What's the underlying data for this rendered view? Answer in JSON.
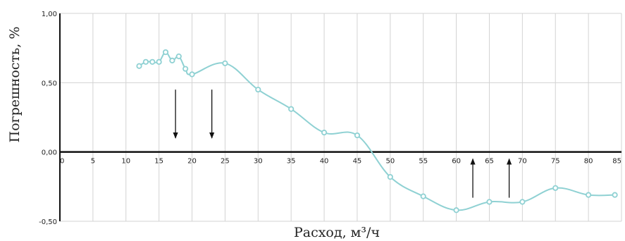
{
  "chart_data": {
    "type": "line",
    "title": "",
    "xlabel": "Расход, м³/ч",
    "ylabel": "Погрешность, %",
    "xlim": [
      0,
      85
    ],
    "ylim": [
      -0.5,
      1.0
    ],
    "grid": true,
    "legend": "none",
    "x_ticks": [
      "0",
      "5",
      "10",
      "15",
      "20",
      "25",
      "30",
      "35",
      "40",
      "45",
      "50",
      "55",
      "60",
      "65",
      "70",
      "75",
      "80",
      "85"
    ],
    "y_ticks": [
      "1,00",
      "0,50",
      "0,00",
      "-0,50"
    ],
    "series": [
      {
        "color": "#8fd1d3",
        "points": [
          [
            12,
            0.62
          ],
          [
            13,
            0.65
          ],
          [
            14,
            0.65
          ],
          [
            15,
            0.65
          ],
          [
            16,
            0.72
          ],
          [
            17,
            0.66
          ],
          [
            18,
            0.69
          ],
          [
            19,
            0.6
          ],
          [
            20,
            0.56
          ],
          [
            25,
            0.64
          ],
          [
            30,
            0.45
          ],
          [
            35,
            0.31
          ],
          [
            40,
            0.14
          ],
          [
            45,
            0.12
          ],
          [
            50,
            -0.18
          ],
          [
            55,
            -0.32
          ],
          [
            60,
            -0.42
          ],
          [
            65,
            -0.36
          ],
          [
            70,
            -0.36
          ],
          [
            75,
            -0.26
          ],
          [
            80,
            -0.31
          ],
          [
            84,
            -0.31
          ]
        ]
      }
    ],
    "annotations": [
      {
        "type": "arrow",
        "direction": "down",
        "x": 17.5,
        "y_from": 0.45,
        "y_to": 0.1
      },
      {
        "type": "arrow",
        "direction": "down",
        "x": 23.0,
        "y_from": 0.45,
        "y_to": 0.1
      },
      {
        "type": "arrow",
        "direction": "up",
        "x": 62.5,
        "y_from": -0.33,
        "y_to": -0.05
      },
      {
        "type": "arrow",
        "direction": "up",
        "x": 68.0,
        "y_from": -0.33,
        "y_to": -0.05
      }
    ]
  }
}
